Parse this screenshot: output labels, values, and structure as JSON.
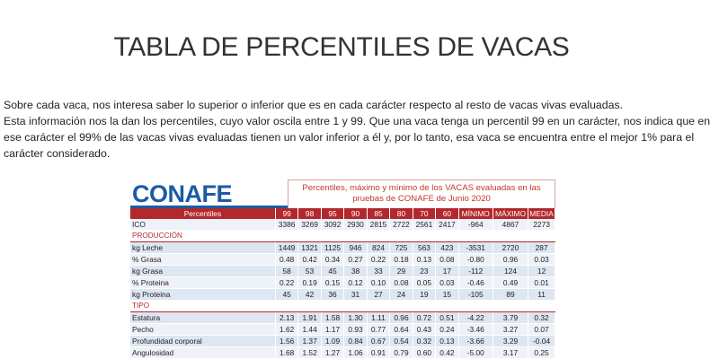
{
  "page": {
    "title": "TABLA DE PERCENTILES DE VACAS",
    "intro_line1": "Sobre cada vaca, nos interesa saber lo superior o inferior que es en cada carácter respecto al resto de vacas vivas evaluadas.",
    "intro_line2": "Esta información nos la dan los percentiles, cuyo valor oscila entre 1 y 99. Que una vaca tenga un percentil 99 en un carácter, nos indica que en ese carácter el 99% de las vacas vivas evaluadas tienen un valor inferior a él y, por lo tanto, esa vaca se encuentra entre el mejor 1% para el carácter considerado."
  },
  "doc": {
    "logo_text": "CONAFE",
    "caption": "Percentiles, máximo y mínimo de los VACAS evaluadas en las pruebas de CONAFE de Junio 2020",
    "headers": [
      "Percentiles",
      "99",
      "98",
      "95",
      "90",
      "85",
      "80",
      "70",
      "60",
      "MÍNIMO",
      "MÁXIMO",
      "MEDIA"
    ],
    "rows": [
      {
        "kind": "data",
        "style": "ico",
        "cells": [
          "ICO",
          "3386",
          "3269",
          "3092",
          "2930",
          "2815",
          "2722",
          "2561",
          "2417",
          "-964",
          "4867",
          "2273"
        ]
      },
      {
        "kind": "section",
        "label": "PRODUCCIÓN"
      },
      {
        "kind": "data",
        "style": "a",
        "cells": [
          "kg Leche",
          "1449",
          "1321",
          "1125",
          "946",
          "824",
          "725",
          "563",
          "423",
          "-3531",
          "2720",
          "287"
        ]
      },
      {
        "kind": "data",
        "style": "b",
        "cells": [
          "% Grasa",
          "0.48",
          "0.42",
          "0.34",
          "0.27",
          "0.22",
          "0.18",
          "0.13",
          "0.08",
          "-0.80",
          "0.96",
          "0.03"
        ]
      },
      {
        "kind": "data",
        "style": "a",
        "cells": [
          "kg Grasa",
          "58",
          "53",
          "45",
          "38",
          "33",
          "29",
          "23",
          "17",
          "-112",
          "124",
          "12"
        ]
      },
      {
        "kind": "data",
        "style": "b",
        "cells": [
          "% Proteina",
          "0.22",
          "0.19",
          "0.15",
          "0.12",
          "0.10",
          "0.08",
          "0.05",
          "0.03",
          "-0.46",
          "0.49",
          "0.01"
        ]
      },
      {
        "kind": "data",
        "style": "a",
        "cells": [
          "kg Proteina",
          "45",
          "42",
          "36",
          "31",
          "27",
          "24",
          "19",
          "15",
          "-105",
          "89",
          "11"
        ]
      },
      {
        "kind": "section",
        "label": "TIPO"
      },
      {
        "kind": "data",
        "style": "a",
        "cells": [
          "Estatura",
          "2.13",
          "1.91",
          "1.58",
          "1.30",
          "1.11",
          "0.96",
          "0.72",
          "0.51",
          "-4.22",
          "3.79",
          "0.32"
        ]
      },
      {
        "kind": "data",
        "style": "b",
        "cells": [
          "Pecho",
          "1.62",
          "1.44",
          "1.17",
          "0.93",
          "0.77",
          "0.64",
          "0.43",
          "0.24",
          "-3.46",
          "3.27",
          "0.07"
        ]
      },
      {
        "kind": "data",
        "style": "a",
        "cells": [
          "Profundidad corporal",
          "1.56",
          "1.37",
          "1.09",
          "0.84",
          "0.67",
          "0.54",
          "0.32",
          "0.13",
          "-3.66",
          "3.29",
          "-0.04"
        ]
      },
      {
        "kind": "data",
        "style": "b",
        "cells": [
          "Angulosidad",
          "1.68",
          "1.52",
          "1.27",
          "1.06",
          "0.91",
          "0.79",
          "0.60",
          "0.42",
          "-5.00",
          "3.17",
          "0.25"
        ]
      }
    ]
  }
}
